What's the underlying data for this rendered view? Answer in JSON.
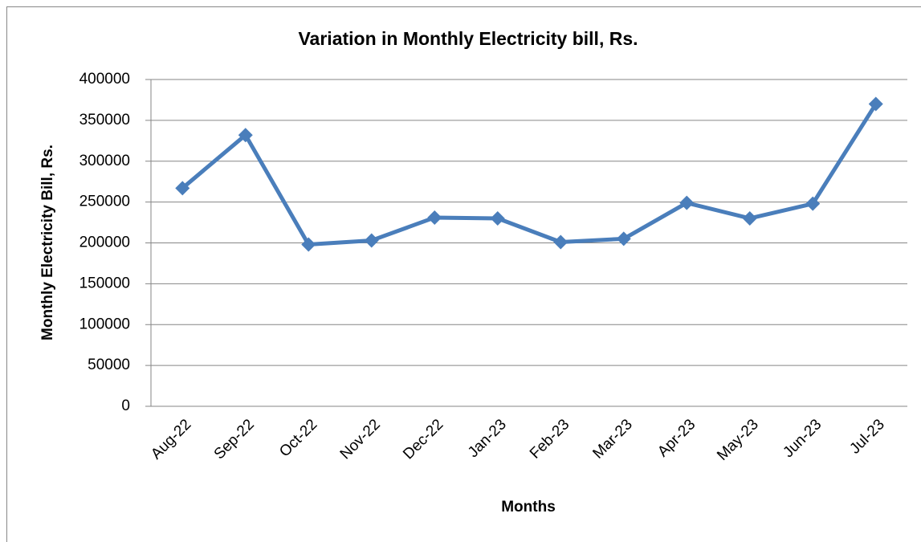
{
  "chart_data": {
    "type": "line",
    "title": "Variation in Monthly Electricity bill, Rs.",
    "x_label": "Months",
    "y_label": "Monthly Electricity Bill, Rs.",
    "categories": [
      "Aug-22",
      "Sep-22",
      "Oct-22",
      "Nov-22",
      "Dec-22",
      "Jan-23",
      "Feb-23",
      "Mar-23",
      "Apr-23",
      "May-23",
      "Jun-23",
      "Jul-23"
    ],
    "values": [
      267000,
      332000,
      198000,
      203000,
      231000,
      230000,
      201000,
      205000,
      249000,
      230000,
      248000,
      370000
    ],
    "color": "#4a7ebb",
    "ylim": [
      0,
      400000
    ],
    "yticks": [
      0,
      50000,
      100000,
      150000,
      200000,
      250000,
      300000,
      350000,
      400000
    ],
    "grid": true
  }
}
